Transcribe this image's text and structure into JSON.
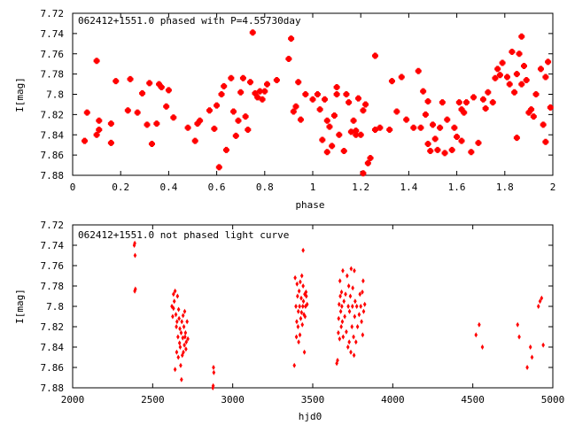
{
  "chart_data": [
    {
      "type": "scatter",
      "title": "062412+1551.0 phased with P=4.55730day",
      "xlabel": "phase",
      "ylabel": "I[mag]",
      "xlim": [
        0,
        2
      ],
      "ylim": [
        7.88,
        7.72
      ],
      "y_inverted": true,
      "grid": false,
      "marker_color": "#ff0000",
      "marker": "filled-square-star",
      "x_ticks": [
        "0",
        "0.2",
        "0.4",
        "0.6",
        "0.8",
        "1",
        "1.2",
        "1.4",
        "1.6",
        "1.8",
        "2"
      ],
      "y_ticks": [
        "7.72",
        "7.74",
        "7.76",
        "7.78",
        "7.8",
        "7.82",
        "7.84",
        "7.86",
        "7.88"
      ],
      "points": [
        [
          0.05,
          7.846
        ],
        [
          0.06,
          7.818
        ],
        [
          0.1,
          7.767
        ],
        [
          0.1,
          7.84
        ],
        [
          0.11,
          7.835
        ],
        [
          0.11,
          7.826
        ],
        [
          0.16,
          7.848
        ],
        [
          0.16,
          7.829
        ],
        [
          0.18,
          7.787
        ],
        [
          0.23,
          7.816
        ],
        [
          0.24,
          7.785
        ],
        [
          0.27,
          7.818
        ],
        [
          0.29,
          7.799
        ],
        [
          0.31,
          7.83
        ],
        [
          0.32,
          7.789
        ],
        [
          0.33,
          7.849
        ],
        [
          0.35,
          7.829
        ],
        [
          0.36,
          7.79
        ],
        [
          0.37,
          7.793
        ],
        [
          0.39,
          7.812
        ],
        [
          0.4,
          7.796
        ],
        [
          0.42,
          7.823
        ],
        [
          0.48,
          7.833
        ],
        [
          0.51,
          7.846
        ],
        [
          0.52,
          7.829
        ],
        [
          0.53,
          7.826
        ],
        [
          0.57,
          7.816
        ],
        [
          0.59,
          7.834
        ],
        [
          0.6,
          7.811
        ],
        [
          0.61,
          7.872
        ],
        [
          0.62,
          7.8
        ],
        [
          0.63,
          7.792
        ],
        [
          0.64,
          7.855
        ],
        [
          0.66,
          7.784
        ],
        [
          0.67,
          7.817
        ],
        [
          0.68,
          7.841
        ],
        [
          0.69,
          7.826
        ],
        [
          0.7,
          7.798
        ],
        [
          0.71,
          7.784
        ],
        [
          0.72,
          7.822
        ],
        [
          0.73,
          7.835
        ],
        [
          0.74,
          7.788
        ],
        [
          0.75,
          7.739
        ],
        [
          0.76,
          7.799
        ],
        [
          0.77,
          7.803
        ],
        [
          0.78,
          7.797
        ],
        [
          0.79,
          7.805
        ],
        [
          0.8,
          7.797
        ],
        [
          0.81,
          7.79
        ],
        [
          0.85,
          7.786
        ],
        [
          0.9,
          7.765
        ],
        [
          0.91,
          7.745
        ],
        [
          0.92,
          7.817
        ],
        [
          0.93,
          7.812
        ],
        [
          0.94,
          7.788
        ],
        [
          0.95,
          7.825
        ],
        [
          0.97,
          7.8
        ],
        [
          1.0,
          7.805
        ],
        [
          1.02,
          7.8
        ],
        [
          1.03,
          7.815
        ],
        [
          1.04,
          7.845
        ],
        [
          1.05,
          7.805
        ],
        [
          1.06,
          7.826
        ],
        [
          1.06,
          7.857
        ],
        [
          1.07,
          7.832
        ],
        [
          1.08,
          7.851
        ],
        [
          1.09,
          7.821
        ],
        [
          1.1,
          7.8
        ],
        [
          1.1,
          7.793
        ],
        [
          1.11,
          7.84
        ],
        [
          1.13,
          7.856
        ],
        [
          1.14,
          7.8
        ],
        [
          1.15,
          7.808
        ],
        [
          1.16,
          7.837
        ],
        [
          1.17,
          7.826
        ],
        [
          1.18,
          7.84
        ],
        [
          1.18,
          7.836
        ],
        [
          1.19,
          7.804
        ],
        [
          1.2,
          7.84
        ],
        [
          1.21,
          7.878
        ],
        [
          1.21,
          7.816
        ],
        [
          1.22,
          7.81
        ],
        [
          1.23,
          7.868
        ],
        [
          1.24,
          7.863
        ],
        [
          1.26,
          7.762
        ],
        [
          1.26,
          7.835
        ],
        [
          1.28,
          7.833
        ],
        [
          1.32,
          7.835
        ],
        [
          1.33,
          7.787
        ],
        [
          1.35,
          7.817
        ],
        [
          1.37,
          7.783
        ],
        [
          1.39,
          7.825
        ],
        [
          1.42,
          7.833
        ],
        [
          1.44,
          7.777
        ],
        [
          1.45,
          7.833
        ],
        [
          1.46,
          7.797
        ],
        [
          1.47,
          7.82
        ],
        [
          1.48,
          7.807
        ],
        [
          1.48,
          7.849
        ],
        [
          1.49,
          7.856
        ],
        [
          1.5,
          7.83
        ],
        [
          1.51,
          7.844
        ],
        [
          1.52,
          7.855
        ],
        [
          1.53,
          7.833
        ],
        [
          1.54,
          7.808
        ],
        [
          1.55,
          7.858
        ],
        [
          1.56,
          7.825
        ],
        [
          1.58,
          7.855
        ],
        [
          1.59,
          7.833
        ],
        [
          1.6,
          7.842
        ],
        [
          1.61,
          7.808
        ],
        [
          1.62,
          7.846
        ],
        [
          1.62,
          7.815
        ],
        [
          1.63,
          7.818
        ],
        [
          1.64,
          7.808
        ],
        [
          1.66,
          7.857
        ],
        [
          1.67,
          7.803
        ],
        [
          1.69,
          7.848
        ],
        [
          1.71,
          7.805
        ],
        [
          1.72,
          7.814
        ],
        [
          1.73,
          7.798
        ],
        [
          1.75,
          7.808
        ],
        [
          1.76,
          7.784
        ],
        [
          1.77,
          7.775
        ],
        [
          1.78,
          7.781
        ],
        [
          1.79,
          7.769
        ],
        [
          1.81,
          7.783
        ],
        [
          1.82,
          7.79
        ],
        [
          1.83,
          7.758
        ],
        [
          1.84,
          7.798
        ],
        [
          1.85,
          7.78
        ],
        [
          1.85,
          7.843
        ],
        [
          1.86,
          7.76
        ],
        [
          1.87,
          7.743
        ],
        [
          1.87,
          7.79
        ],
        [
          1.88,
          7.772
        ],
        [
          1.89,
          7.786
        ],
        [
          1.9,
          7.818
        ],
        [
          1.91,
          7.815
        ],
        [
          1.92,
          7.822
        ],
        [
          1.93,
          7.8
        ],
        [
          1.95,
          7.775
        ],
        [
          1.96,
          7.83
        ],
        [
          1.97,
          7.783
        ],
        [
          1.98,
          7.768
        ],
        [
          1.99,
          7.813
        ],
        [
          1.97,
          7.847
        ]
      ]
    },
    {
      "type": "scatter",
      "title": "062412+1551.0 not phased light curve",
      "xlabel": "hjd0",
      "ylabel": "I[mag]",
      "xlim": [
        2000,
        5000
      ],
      "ylim": [
        7.88,
        7.72
      ],
      "y_inverted": true,
      "grid": false,
      "marker_color": "#ff0000",
      "marker": "diamond",
      "x_ticks": [
        "2000",
        "2500",
        "3000",
        "3500",
        "4000",
        "4500",
        "5000"
      ],
      "y_ticks": [
        "7.72",
        "7.74",
        "7.76",
        "7.78",
        "7.8",
        "7.82",
        "7.84",
        "7.86",
        "7.88"
      ],
      "points": [
        [
          2385,
          7.74
        ],
        [
          2388,
          7.738
        ],
        [
          2390,
          7.75
        ],
        [
          2388,
          7.785
        ],
        [
          2392,
          7.783
        ],
        [
          2620,
          7.8
        ],
        [
          2630,
          7.802
        ],
        [
          2635,
          7.795
        ],
        [
          2640,
          7.785
        ],
        [
          2645,
          7.808
        ],
        [
          2648,
          7.82
        ],
        [
          2650,
          7.845
        ],
        [
          2652,
          7.815
        ],
        [
          2655,
          7.79
        ],
        [
          2658,
          7.83
        ],
        [
          2660,
          7.85
        ],
        [
          2662,
          7.803
        ],
        [
          2665,
          7.812
        ],
        [
          2668,
          7.836
        ],
        [
          2670,
          7.822
        ],
        [
          2672,
          7.84
        ],
        [
          2675,
          7.858
        ],
        [
          2678,
          7.826
        ],
        [
          2680,
          7.872
        ],
        [
          2682,
          7.815
        ],
        [
          2685,
          7.848
        ],
        [
          2688,
          7.831
        ],
        [
          2690,
          7.809
        ],
        [
          2692,
          7.845
        ],
        [
          2695,
          7.82
        ],
        [
          2698,
          7.838
        ],
        [
          2700,
          7.805
        ],
        [
          2702,
          7.83
        ],
        [
          2705,
          7.826
        ],
        [
          2708,
          7.842
        ],
        [
          2710,
          7.835
        ],
        [
          2715,
          7.815
        ],
        [
          2720,
          7.832
        ],
        [
          2640,
          7.862
        ],
        [
          2625,
          7.81
        ],
        [
          2630,
          7.788
        ],
        [
          2880,
          7.86
        ],
        [
          2882,
          7.865
        ],
        [
          2878,
          7.878
        ],
        [
          2876,
          7.88
        ],
        [
          3385,
          7.858
        ],
        [
          3390,
          7.772
        ],
        [
          3395,
          7.8
        ],
        [
          3398,
          7.83
        ],
        [
          3400,
          7.815
        ],
        [
          3402,
          7.778
        ],
        [
          3405,
          7.79
        ],
        [
          3408,
          7.82
        ],
        [
          3410,
          7.805
        ],
        [
          3412,
          7.835
        ],
        [
          3415,
          7.785
        ],
        [
          3418,
          7.8
        ],
        [
          3420,
          7.828
        ],
        [
          3422,
          7.776
        ],
        [
          3425,
          7.812
        ],
        [
          3428,
          7.792
        ],
        [
          3430,
          7.806
        ],
        [
          3432,
          7.77
        ],
        [
          3435,
          7.818
        ],
        [
          3438,
          7.8
        ],
        [
          3440,
          7.78
        ],
        [
          3442,
          7.795
        ],
        [
          3445,
          7.808
        ],
        [
          3448,
          7.845
        ],
        [
          3450,
          7.788
        ],
        [
          3452,
          7.81
        ],
        [
          3455,
          7.8
        ],
        [
          3458,
          7.786
        ],
        [
          3460,
          7.79
        ],
        [
          3465,
          7.798
        ],
        [
          3440,
          7.745
        ],
        [
          3650,
          7.856
        ],
        [
          3655,
          7.853
        ],
        [
          3660,
          7.826
        ],
        [
          3662,
          7.812
        ],
        [
          3665,
          7.798
        ],
        [
          3668,
          7.832
        ],
        [
          3670,
          7.775
        ],
        [
          3672,
          7.79
        ],
        [
          3675,
          7.805
        ],
        [
          3678,
          7.82
        ],
        [
          3680,
          7.786
        ],
        [
          3682,
          7.8
        ],
        [
          3685,
          7.815
        ],
        [
          3688,
          7.765
        ],
        [
          3690,
          7.83
        ],
        [
          3695,
          7.795
        ],
        [
          3700,
          7.81
        ],
        [
          3705,
          7.788
        ],
        [
          3710,
          7.825
        ],
        [
          3715,
          7.77
        ],
        [
          3720,
          7.84
        ],
        [
          3722,
          7.8
        ],
        [
          3725,
          7.78
        ],
        [
          3728,
          7.835
        ],
        [
          3730,
          7.805
        ],
        [
          3735,
          7.79
        ],
        [
          3738,
          7.845
        ],
        [
          3740,
          7.763
        ],
        [
          3745,
          7.82
        ],
        [
          3748,
          7.8
        ],
        [
          3750,
          7.782
        ],
        [
          3755,
          7.83
        ],
        [
          3758,
          7.848
        ],
        [
          3760,
          7.765
        ],
        [
          3762,
          7.81
        ],
        [
          3765,
          7.795
        ],
        [
          3770,
          7.835
        ],
        [
          3775,
          7.8
        ],
        [
          3780,
          7.82
        ],
        [
          3790,
          7.808
        ],
        [
          3795,
          7.788
        ],
        [
          3800,
          7.8
        ],
        [
          3805,
          7.815
        ],
        [
          3810,
          7.786
        ],
        [
          3812,
          7.828
        ],
        [
          3815,
          7.775
        ],
        [
          3818,
          7.805
        ],
        [
          3825,
          7.798
        ],
        [
          4520,
          7.828
        ],
        [
          4540,
          7.818
        ],
        [
          4560,
          7.84
        ],
        [
          4780,
          7.818
        ],
        [
          4790,
          7.83
        ],
        [
          4840,
          7.86
        ],
        [
          4860,
          7.84
        ],
        [
          4870,
          7.85
        ],
        [
          4910,
          7.8
        ],
        [
          4920,
          7.795
        ],
        [
          4930,
          7.792
        ],
        [
          4940,
          7.838
        ]
      ]
    }
  ]
}
